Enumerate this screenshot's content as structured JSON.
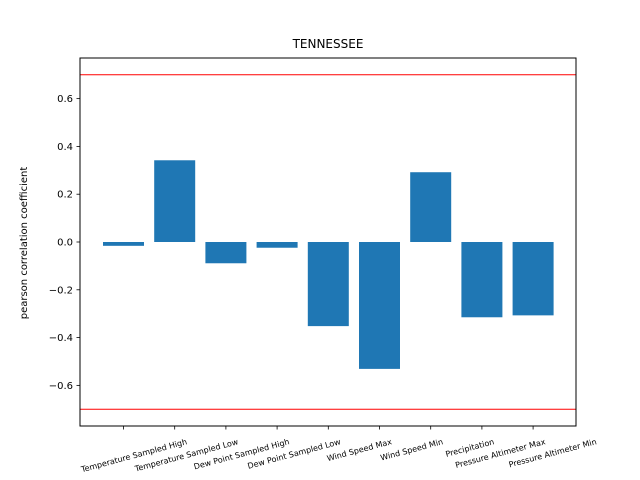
{
  "chart_data": {
    "type": "bar",
    "title": "TENNESSEE",
    "xlabel": "",
    "ylabel": "pearson correlation coefficient",
    "categories": [
      "Temperature Sampled High",
      "Temperature Sampled Low",
      "Dew Point Sampled High",
      "Dew Point Sampled Low",
      "Wind Speed Max",
      "Wind Speed Min",
      "Precipitation",
      "Pressure Altimeter Max",
      "Pressure Altimeter Min"
    ],
    "values": [
      -0.016,
      0.342,
      -0.089,
      -0.024,
      -0.352,
      -0.531,
      0.292,
      -0.315,
      -0.307
    ],
    "ylim": [
      -0.77,
      0.77
    ],
    "yticks": [
      "−0.6",
      "−0.4",
      "−0.2",
      "0.0",
      "0.2",
      "0.4",
      "0.6"
    ],
    "ytick_values": [
      -0.6,
      -0.4,
      -0.2,
      0.0,
      0.2,
      0.4,
      0.6
    ],
    "reference_lines": [
      0.7,
      -0.7
    ],
    "grid": false,
    "colors": {
      "bar": "#1f77b4",
      "reference_line": "#ff0000",
      "axes": "#000000"
    }
  }
}
